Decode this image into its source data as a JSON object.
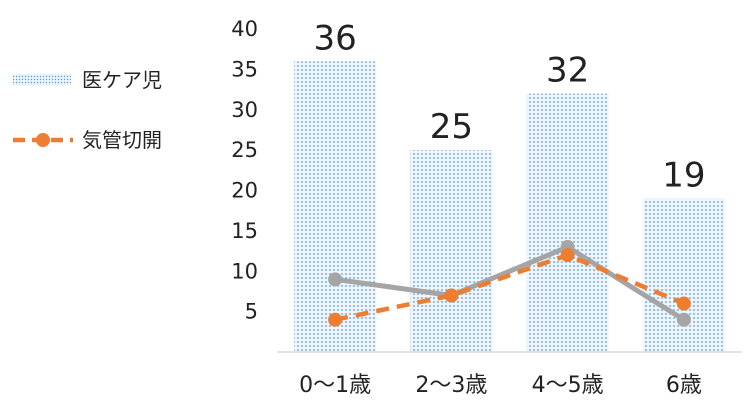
{
  "chart_data": {
    "type": "bar",
    "categories": [
      "0〜1歳",
      "2〜3歳",
      "4〜5歳",
      "6歳"
    ],
    "series": [
      {
        "name": "医ケア児",
        "type": "bar",
        "values": [
          36,
          25,
          32,
          19
        ],
        "data_labels": [
          "36",
          "25",
          "32",
          "19"
        ],
        "color": "#5b9bd5",
        "pattern": "dotted"
      },
      {
        "name": "気管切開",
        "type": "line",
        "values": [
          4,
          7,
          12,
          6
        ],
        "color": "#ed7d31",
        "style": "dashed"
      },
      {
        "type": "line",
        "values": [
          9,
          7,
          13,
          4
        ],
        "color": "#a5a5a5",
        "style": "solid"
      }
    ],
    "yticks": [
      "5",
      "10",
      "15",
      "20",
      "25",
      "30",
      "35",
      "40"
    ],
    "ylim": [
      0,
      40
    ],
    "grid": false,
    "legend": "left"
  }
}
